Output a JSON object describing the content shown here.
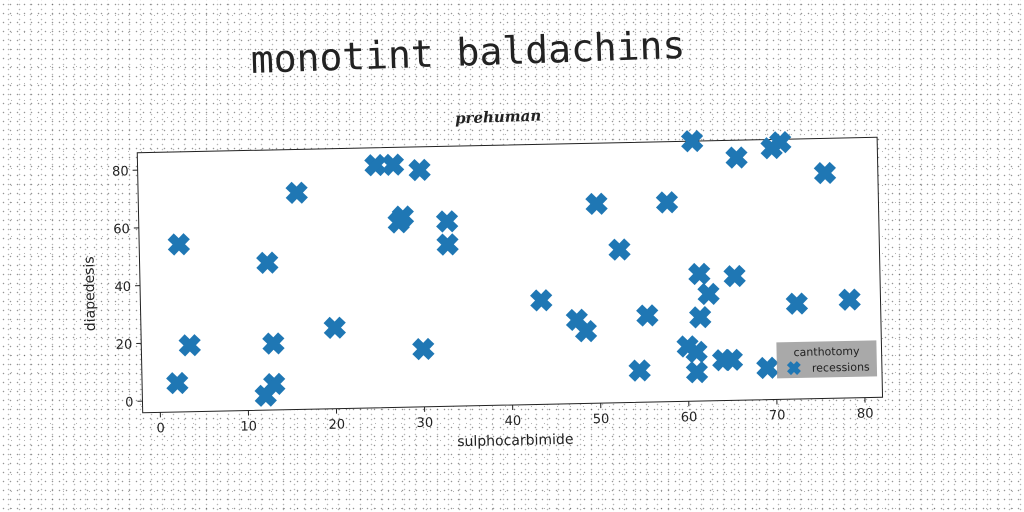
{
  "header": {
    "title": "monotint baldachins",
    "subtitle": "prehuman"
  },
  "chart_data": {
    "type": "scatter",
    "xlabel": "sulphocarbimide",
    "ylabel": "diapedesis",
    "xlim": [
      -2,
      82
    ],
    "ylim": [
      -4,
      86
    ],
    "xticks": [
      0,
      10,
      20,
      30,
      40,
      50,
      60,
      70,
      80
    ],
    "yticks": [
      0,
      20,
      40,
      60,
      80
    ],
    "grid": false,
    "legend": {
      "title": "canthotomy",
      "position": "lower-right"
    },
    "series": [
      {
        "name": "recessions",
        "color": "#1f77b4",
        "marker": "X",
        "points": [
          [
            2,
            6
          ],
          [
            2.5,
            54
          ],
          [
            3.5,
            19
          ],
          [
            12,
            1
          ],
          [
            12.5,
            47
          ],
          [
            13,
            5
          ],
          [
            13,
            19
          ],
          [
            16,
            71
          ],
          [
            20,
            24
          ],
          [
            25,
            80
          ],
          [
            27,
            80
          ],
          [
            27.5,
            60
          ],
          [
            28,
            62
          ],
          [
            30,
            16
          ],
          [
            30,
            78
          ],
          [
            33,
            60
          ],
          [
            33,
            52
          ],
          [
            43.5,
            32
          ],
          [
            47.5,
            25
          ],
          [
            48.5,
            21
          ],
          [
            50,
            65
          ],
          [
            52.5,
            49
          ],
          [
            54.5,
            7
          ],
          [
            55.5,
            26
          ],
          [
            58,
            65
          ],
          [
            60,
            15
          ],
          [
            61,
            13
          ],
          [
            61,
            6
          ],
          [
            61,
            86
          ],
          [
            61.5,
            40
          ],
          [
            61.5,
            25
          ],
          [
            62.5,
            33
          ],
          [
            64,
            10
          ],
          [
            65,
            10
          ],
          [
            65.5,
            39
          ],
          [
            66,
            80
          ],
          [
            69,
            7
          ],
          [
            70,
            83
          ],
          [
            71,
            85
          ],
          [
            72.5,
            29
          ],
          [
            76,
            74
          ],
          [
            78.5,
            30
          ]
        ]
      }
    ]
  }
}
